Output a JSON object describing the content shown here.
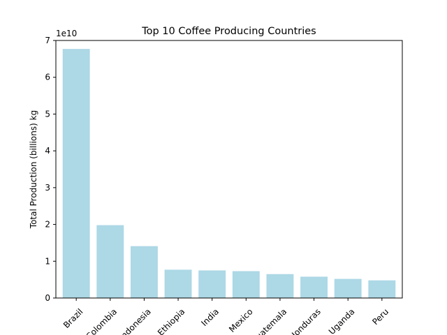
{
  "chart_data": {
    "type": "bar",
    "title": "Top 10 Coffee Producing Countries",
    "ylabel": "Total Production (billions) kg",
    "xlabel": "",
    "offset_text": "1e10",
    "categories": [
      "Brazil",
      "Colombia",
      "Indonesia",
      "Ethiopia",
      "India",
      "Mexico",
      "Guatemala",
      "Honduras",
      "Uganda",
      "Peru"
    ],
    "values": [
      67700000000,
      19800000000,
      14100000000,
      7700000000,
      7500000000,
      7300000000,
      6500000000,
      5800000000,
      5200000000,
      4800000000
    ],
    "ylim": [
      0,
      70000000000
    ],
    "yticks": [
      0,
      10000000000,
      20000000000,
      30000000000,
      40000000000,
      50000000000,
      60000000000,
      70000000000
    ],
    "ytick_labels": [
      "0",
      "1",
      "2",
      "3",
      "4",
      "5",
      "6",
      "7"
    ],
    "bar_color": "#add8e6",
    "grid": false,
    "legend": "none"
  }
}
